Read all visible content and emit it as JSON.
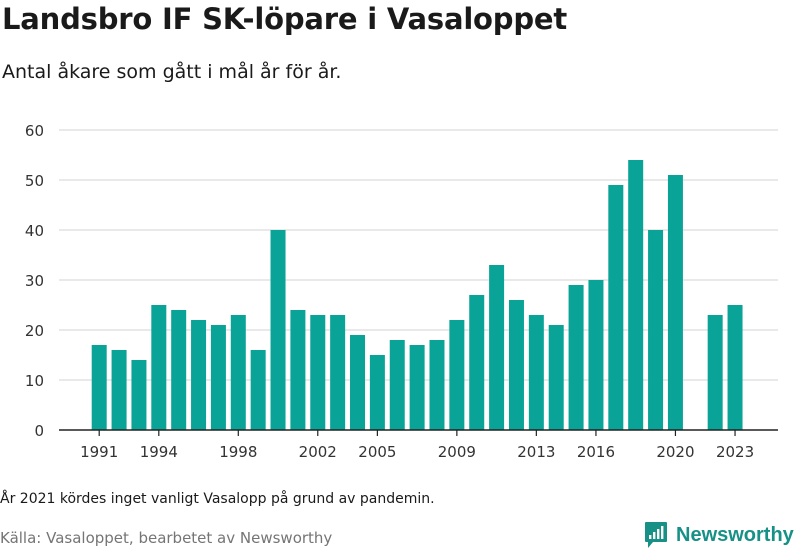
{
  "title": "Landsbro IF SK-löpare i Vasaloppet",
  "subtitle": "Antal åkare som gått i mål år för år.",
  "note": "År 2021 kördes inget vanligt Vasalopp på grund av pandemin.",
  "source": "Källa: Vasaloppet, bearbetet av Newsworthy",
  "brand": "Newsworthy",
  "colors": {
    "bar": "#0aa398",
    "brand": "#179186",
    "grid": "#dcdcdc"
  },
  "chart_data": {
    "type": "bar",
    "title": "Landsbro IF SK-löpare i Vasaloppet",
    "subtitle": "Antal åkare som gått i mål år för år.",
    "categories": [
      1991,
      1992,
      1993,
      1994,
      1995,
      1996,
      1997,
      1998,
      1999,
      2000,
      2001,
      2002,
      2003,
      2004,
      2005,
      2006,
      2007,
      2008,
      2009,
      2010,
      2011,
      2012,
      2013,
      2014,
      2015,
      2016,
      2017,
      2018,
      2019,
      2020,
      2021,
      2022,
      2023
    ],
    "values": [
      17,
      16,
      14,
      25,
      24,
      22,
      21,
      23,
      16,
      40,
      24,
      23,
      23,
      19,
      15,
      18,
      17,
      18,
      22,
      27,
      33,
      26,
      23,
      21,
      29,
      30,
      49,
      54,
      40,
      51,
      null,
      23,
      25
    ],
    "xticks": [
      1991,
      1994,
      1998,
      2002,
      2005,
      2009,
      2013,
      2016,
      2020,
      2023
    ],
    "yticks": [
      0,
      10,
      20,
      30,
      40,
      50,
      60
    ],
    "ylim": [
      0,
      60
    ],
    "grid": true
  }
}
